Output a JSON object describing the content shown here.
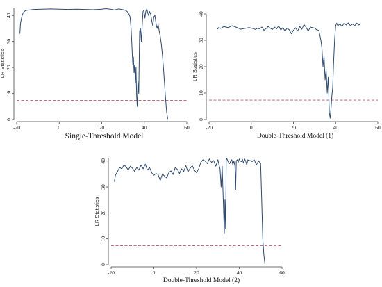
{
  "chart_data": [
    {
      "type": "line",
      "caption": "Single-Threshold Model",
      "ylabel": "LR Statistics",
      "xlim": [
        -20,
        60
      ],
      "ylim": [
        0,
        43
      ],
      "x_ticks": [
        -20,
        0,
        20,
        40,
        60
      ],
      "y_ticks": [
        0,
        10,
        20,
        30,
        40
      ],
      "grid": false,
      "colors": {
        "line": "#2e4a6e",
        "threshold": "#c6506a"
      },
      "threshold": 7.35,
      "series": [
        {
          "x": [
            -18.5,
            -18.2,
            -17.6,
            -17,
            -16,
            -15,
            -12,
            -8,
            -4,
            0,
            4,
            8,
            12,
            16,
            20,
            22,
            24,
            26,
            28,
            30,
            31,
            32,
            32.8,
            33.3,
            33.8,
            34.2,
            34.6,
            34.9,
            35.2,
            35.5,
            35.8,
            36.1,
            36.4,
            36.7,
            37,
            37.4,
            37.8,
            38.2,
            38.6,
            39,
            39.4,
            39.8,
            40.3,
            40.7,
            41.2,
            41.6,
            42,
            42.5,
            43,
            43.5,
            44,
            44.5,
            45,
            45.5,
            46,
            46.5,
            47,
            47.5,
            48,
            48.5,
            49,
            49.5,
            50,
            50.5,
            51
          ],
          "y": [
            33,
            37,
            39.5,
            41,
            41.8,
            42,
            42.3,
            42.4,
            42.5,
            42.4,
            42.3,
            42.4,
            42.3,
            42.2,
            42.4,
            42.6,
            42.4,
            42.1,
            42.5,
            42.2,
            42,
            41.5,
            40.5,
            39.5,
            35,
            28,
            21,
            24,
            18,
            21,
            14,
            20,
            9,
            5,
            15,
            10,
            34,
            35,
            30,
            36,
            41.5,
            42,
            39,
            41.5,
            42.5,
            41,
            40,
            41.5,
            40.5,
            38,
            36,
            39.5,
            40,
            37,
            35,
            36.5,
            34,
            32,
            29,
            25,
            20,
            14,
            8,
            3,
            0.2
          ]
        }
      ]
    },
    {
      "type": "line",
      "caption": "Double-Threshold Model (1)",
      "ylabel": "LR Statistics",
      "xlim": [
        -20,
        60
      ],
      "ylim": [
        0,
        40
      ],
      "x_ticks": [
        -20,
        0,
        20,
        40,
        60
      ],
      "y_ticks": [
        0,
        10,
        20,
        30,
        40
      ],
      "grid": false,
      "colors": {
        "line": "#2e4a6e",
        "threshold": "#c6506a"
      },
      "threshold": 7.35,
      "series": [
        {
          "x": [
            -16,
            -15.5,
            -14.5,
            -13,
            -11,
            -9,
            -7,
            -5,
            -3,
            -1,
            1,
            2,
            3,
            4,
            5,
            6,
            7,
            8,
            9,
            10,
            11,
            12,
            13,
            14,
            15,
            16,
            17,
            18,
            19,
            20,
            21,
            22,
            23,
            24,
            25,
            26,
            27,
            28,
            29,
            30,
            31,
            32,
            32.5,
            33,
            33.5,
            34,
            34.5,
            35,
            35.5,
            36,
            36.5,
            37,
            37.4,
            37.8,
            38.2,
            38.6,
            39,
            39.5,
            40,
            40.5,
            41,
            42,
            43,
            44,
            45,
            46,
            47,
            48,
            49,
            50,
            51,
            52
          ],
          "y": [
            34.2,
            34.8,
            34.5,
            35.2,
            34.8,
            35.5,
            34.9,
            34.2,
            34.5,
            34.8,
            34.4,
            34.1,
            34.6,
            34.3,
            35,
            33.8,
            34.4,
            35.2,
            34.6,
            34.1,
            35,
            34.3,
            35.5,
            33.9,
            34.8,
            33.5,
            34.6,
            34,
            32.5,
            33.8,
            34.7,
            33.5,
            35.2,
            34.2,
            36,
            34.9,
            33.5,
            35,
            34.8,
            34.6,
            34,
            33.8,
            32,
            30,
            27,
            20,
            24,
            15,
            19,
            10,
            16,
            2.5,
            0.5,
            4,
            9,
            12,
            21,
            30,
            35.5,
            36.5,
            35.5,
            36.2,
            35.2,
            36.5,
            35.8,
            36.6,
            35.5,
            36.2,
            35.5,
            36.5,
            35.8,
            36.3
          ]
        }
      ]
    },
    {
      "type": "line",
      "caption": "Double-Threshold Model (2)",
      "ylabel": "LR Statistics",
      "xlim": [
        -20,
        60
      ],
      "ylim": [
        0,
        41
      ],
      "x_ticks": [
        -20,
        0,
        20,
        40,
        60
      ],
      "y_ticks": [
        0,
        10,
        20,
        30,
        40
      ],
      "grid": false,
      "colors": {
        "line": "#2e4a6e",
        "threshold": "#c6506a"
      },
      "threshold": 7.35,
      "series": [
        {
          "x": [
            -18.5,
            -18,
            -17,
            -16,
            -15,
            -14,
            -13,
            -12,
            -11,
            -10,
            -9,
            -8,
            -7,
            -6,
            -5,
            -4,
            -3,
            -2,
            -1,
            0,
            1,
            2,
            3,
            4,
            5,
            6,
            7,
            8,
            9,
            10,
            11,
            12,
            13,
            14,
            15,
            16,
            17,
            18,
            19,
            20,
            21,
            22,
            23,
            24,
            25,
            26,
            27,
            28,
            29,
            30,
            30.5,
            31,
            31.5,
            32,
            32.5,
            33,
            33.3,
            33.6,
            33.9,
            34.2,
            34.6,
            35,
            35.5,
            36,
            36.5,
            37,
            37.5,
            38,
            38.3,
            38.6,
            39,
            39.5,
            40,
            40.5,
            41,
            41.5,
            42,
            42.5,
            43,
            43.5,
            44,
            44.5,
            45,
            46,
            47,
            48,
            49,
            50,
            50.5,
            51,
            51.5,
            52
          ],
          "y": [
            32,
            34.5,
            36,
            37.5,
            37,
            38.5,
            37.8,
            36.5,
            38,
            37.2,
            36,
            37.5,
            36.5,
            38.5,
            37,
            38.8,
            36.5,
            37.5,
            35.5,
            34.5,
            35.2,
            34.8,
            32.5,
            35,
            34.2,
            33.5,
            35.5,
            36.2,
            34.8,
            37.5,
            36.8,
            35.2,
            37,
            36,
            38.2,
            35.8,
            37.2,
            38.2,
            36.5,
            35.5,
            37,
            39.5,
            40.5,
            40,
            39,
            40.8,
            39.5,
            40.2,
            38,
            40.5,
            38.5,
            37,
            30,
            38,
            25,
            12,
            25,
            14,
            40.5,
            41,
            40,
            39.5,
            39,
            40,
            40.5,
            38.5,
            40,
            38,
            29,
            40,
            40.5,
            39.5,
            40.8,
            40,
            39.8,
            40.6,
            39.2,
            40.8,
            40,
            38.5,
            40.5,
            40,
            40.2,
            39.8,
            40.5,
            38.5,
            40,
            39.2,
            25,
            10,
            4,
            0.2
          ]
        }
      ]
    }
  ]
}
